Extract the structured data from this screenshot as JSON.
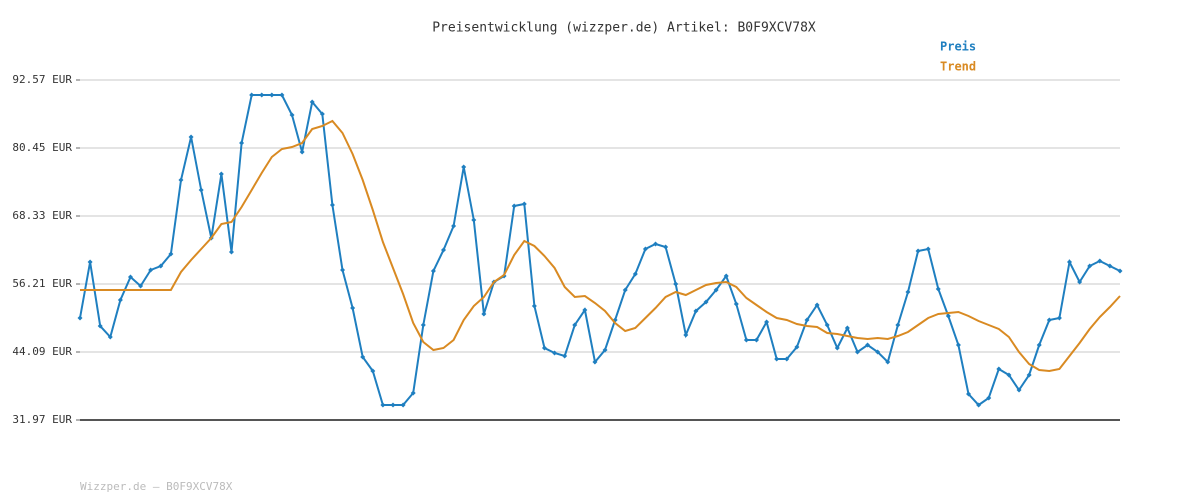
{
  "chart_data": {
    "type": "line",
    "title": "Preisentwicklung (wizzper.de) Artikel: B0F9XCV78X",
    "footer": "Wizzper.de – B0F9XCV78X",
    "ylim": [
      31.97,
      92.57
    ],
    "yticks": [
      {
        "value": 31.97,
        "label": "31.97 EUR"
      },
      {
        "value": 44.09,
        "label": "44.09 EUR"
      },
      {
        "value": 56.21,
        "label": "56.21 EUR"
      },
      {
        "value": 68.33,
        "label": "68.33 EUR"
      },
      {
        "value": 80.45,
        "label": "80.45 EUR"
      },
      {
        "value": 92.57,
        "label": "92.57 EUR"
      }
    ],
    "grid": true,
    "legend": "top-right",
    "series": [
      {
        "name": "Preis",
        "color": "#1f7fc0",
        "markers": true,
        "values": [
          50.15,
          60.13,
          48.72,
          46.76,
          53.36,
          57.45,
          55.85,
          58.7,
          59.42,
          61.55,
          74.74,
          82.41,
          72.96,
          64.41,
          75.81,
          61.91,
          81.34,
          89.89,
          89.89,
          89.89,
          89.89,
          86.33,
          79.73,
          88.64,
          86.51,
          70.29,
          58.7,
          51.93,
          43.2,
          40.7,
          34.64,
          34.64,
          34.64,
          36.78,
          48.9,
          58.52,
          62.27,
          66.55,
          77.06,
          67.61,
          50.86,
          56.56,
          57.63,
          70.11,
          70.47,
          52.29,
          44.8,
          43.91,
          43.38,
          48.9,
          51.57,
          42.31,
          44.45,
          49.79,
          55.14,
          57.99,
          62.45,
          63.34,
          62.8,
          56.21,
          47.12,
          51.4,
          53.0,
          55.14,
          57.63,
          52.64,
          46.23,
          46.23,
          49.44,
          42.84,
          42.84,
          44.98,
          49.79,
          52.47,
          48.9,
          44.8,
          48.37,
          44.09,
          45.34,
          44.09,
          42.31,
          48.9,
          54.78,
          62.09,
          62.45,
          55.32,
          50.5,
          45.34,
          36.6,
          34.64,
          35.89,
          41.06,
          39.99,
          37.32,
          39.99,
          45.34,
          49.79,
          50.15,
          60.13,
          56.56,
          59.42,
          60.31,
          59.42,
          58.52
        ]
      },
      {
        "name": "Trend",
        "color": "#d98a22",
        "markers": false,
        "values": [
          55.14,
          55.14,
          55.14,
          55.14,
          55.14,
          55.14,
          55.14,
          55.14,
          55.14,
          55.14,
          58.35,
          60.49,
          62.45,
          64.41,
          66.9,
          67.26,
          69.93,
          72.96,
          75.99,
          78.84,
          80.27,
          80.63,
          81.34,
          83.83,
          84.37,
          85.26,
          83.12,
          79.38,
          74.74,
          69.4,
          63.69,
          59.06,
          54.43,
          49.26,
          45.87,
          44.45,
          44.8,
          46.23,
          49.79,
          52.29,
          53.89,
          56.56,
          57.81,
          61.38,
          63.87,
          62.98,
          61.2,
          59.06,
          55.67,
          53.89,
          54.07,
          52.82,
          51.4,
          49.26,
          47.83,
          48.37,
          50.15,
          51.93,
          53.89,
          54.78,
          54.25,
          55.14,
          56.03,
          56.39,
          56.56,
          55.67,
          53.71,
          52.47,
          51.22,
          50.15,
          49.79,
          49.08,
          48.72,
          48.54,
          47.48,
          47.3,
          46.94,
          46.58,
          46.41,
          46.58,
          46.41,
          46.94,
          47.65,
          48.9,
          50.15,
          50.86,
          51.04,
          51.22,
          50.5,
          49.61,
          48.9,
          48.19,
          46.76,
          44.09,
          41.95,
          40.88,
          40.7,
          41.06,
          43.38,
          45.69,
          48.19,
          50.33,
          52.11,
          54.07
        ]
      }
    ]
  }
}
